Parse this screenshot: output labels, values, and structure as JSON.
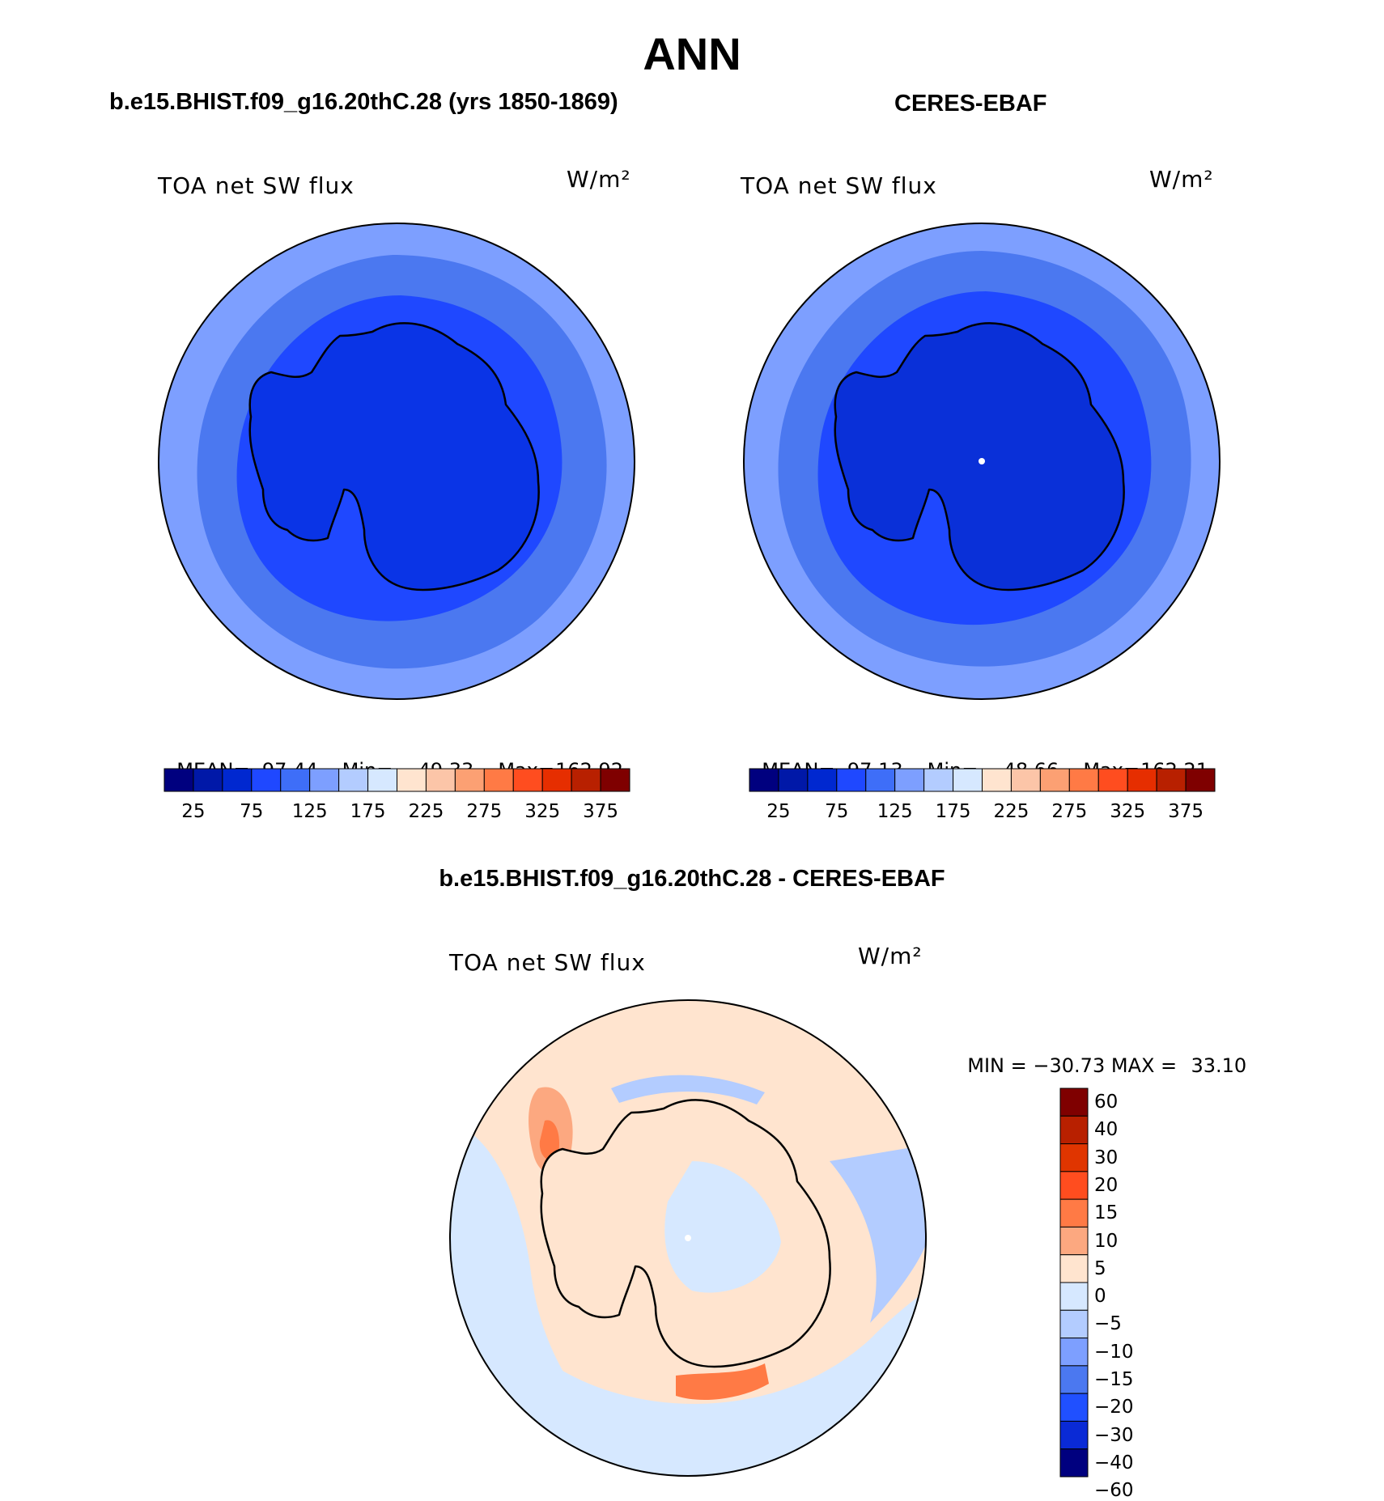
{
  "figure": {
    "title": "ANN"
  },
  "panels": {
    "model": {
      "title": "b.e15.BHIST.f09_g16.20thC.28 (yrs 1850-1869)",
      "variable": "TOA net SW flux",
      "units": "W/m²",
      "mean_label": "MEAN=",
      "mean": "97.44",
      "min_label": "Min=",
      "min": "49.33",
      "max_label": "Max=",
      "max": "162.92"
    },
    "obs": {
      "title": "CERES-EBAF",
      "variable": "TOA net SW flux",
      "units": "W/m²",
      "mean_label": "MEAN=",
      "mean": "97.13",
      "min_label": "Min=",
      "min": "48.66",
      "max_label": "Max=",
      "max": "162.21"
    },
    "diff": {
      "title": "b.e15.BHIST.f09_g16.20thC.28 - CERES-EBAF",
      "variable": "TOA net SW flux",
      "units": "W/m²",
      "min_label": "MIN =",
      "min": "−30.73",
      "max_label": "MAX =",
      "max": "33.10"
    }
  },
  "colorbar_abs": {
    "colors": [
      "#00007f",
      "#0018a8",
      "#0028d0",
      "#1f48ff",
      "#3e6ef8",
      "#7d9fff",
      "#b3ccff",
      "#d6e8ff",
      "#ffe4cf",
      "#fcc5a8",
      "#fca073",
      "#ff7a45",
      "#ff4d1f",
      "#e62e00",
      "#b82000",
      "#7f0000"
    ],
    "tick_labels": [
      "25",
      "75",
      "125",
      "175",
      "225",
      "275",
      "325",
      "375"
    ]
  },
  "colorbar_diff": {
    "colors": [
      "#7f0000",
      "#b82000",
      "#e03500",
      "#ff4d1f",
      "#ff7a45",
      "#fca880",
      "#ffe4cf",
      "#d6e8ff",
      "#b3ccff",
      "#7d9fff",
      "#4b78f0",
      "#2050ff",
      "#0a2ad6",
      "#00007f"
    ],
    "tick_labels": [
      "60",
      "40",
      "30",
      "20",
      "15",
      "10",
      "5",
      "0",
      "−5",
      "−10",
      "−15",
      "−20",
      "−30",
      "−40",
      "−60"
    ]
  },
  "colors": {
    "ocean_outer": "#7d9fff",
    "ocean_mid": "#4b78f0",
    "ocean_inner": "#1f48ff",
    "antarctica_model": "#0a34e6",
    "antarctica_obs": "#0a30d8",
    "diff_pos_light": "#ffe4cf",
    "diff_neg_light": "#d6e8ff",
    "diff_neg_mid": "#b3ccff",
    "diff_pos_mid": "#fca880",
    "diff_pos_strong": "#ff7a45"
  }
}
